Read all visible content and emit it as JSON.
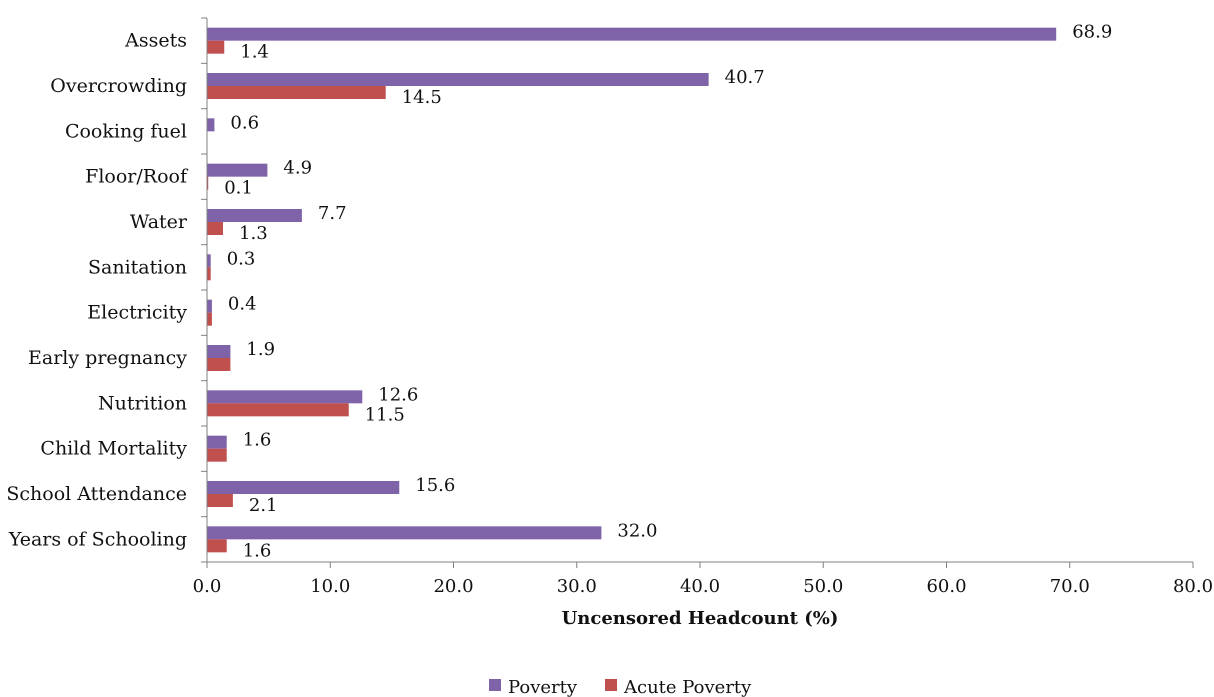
{
  "chart_data": {
    "type": "bar",
    "orientation": "horizontal",
    "categories": [
      "Assets",
      "Overcrowding",
      "Cooking fuel",
      "Floor/Roof",
      "Water",
      "Sanitation",
      "Electricity",
      "Early pregnancy",
      "Nutrition",
      "Child Mortality",
      "School Attendance",
      "Years of Schooling"
    ],
    "series": [
      {
        "name": "Poverty",
        "color": "#7F63A8",
        "values": [
          68.9,
          40.7,
          0.6,
          4.9,
          7.7,
          0.3,
          0.4,
          1.9,
          12.6,
          1.6,
          15.6,
          32.0
        ],
        "labels": [
          "68.9",
          "40.7",
          "0.6",
          "4.9",
          "7.7",
          "0.3",
          "0.4",
          "1.9",
          "12.6",
          "1.6",
          "15.6",
          "32.0"
        ]
      },
      {
        "name": "Acute Poverty",
        "color": "#C0504D",
        "values": [
          1.4,
          14.5,
          0.0,
          0.1,
          1.3,
          0.3,
          0.4,
          1.9,
          11.5,
          1.6,
          2.1,
          1.6
        ],
        "labels": [
          "1.4",
          "14.5",
          "",
          "0.1",
          "1.3",
          "",
          "",
          "",
          "11.5",
          "",
          "2.1",
          "1.6"
        ]
      }
    ],
    "xlabel": "Uncensored Headcount (%)",
    "ylabel": "",
    "xlim": [
      0,
      80
    ],
    "xticks": [
      "0.0",
      "10.0",
      "20.0",
      "30.0",
      "40.0",
      "50.0",
      "60.0",
      "70.0",
      "80.0"
    ],
    "grid": false,
    "legend_position": "bottom"
  }
}
